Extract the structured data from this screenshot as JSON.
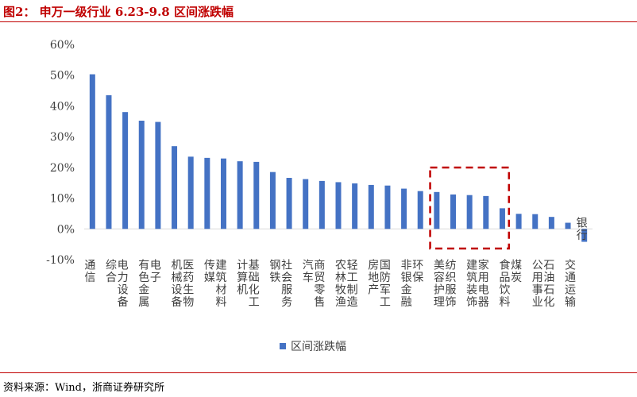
{
  "header": {
    "title": "图2： 申万一级行业 6.23-9.8 区间涨跌幅"
  },
  "footer": {
    "source": "资料来源：Wind，浙商证券研究所"
  },
  "colors": {
    "bar": "#4472c4",
    "title": "#c00000",
    "highlight": "#c00000",
    "axis": "#d9d9d9",
    "text": "#404040"
  },
  "chart_data": {
    "type": "bar",
    "title": "",
    "xlabel": "",
    "ylabel": "",
    "ylim": [
      -10,
      60
    ],
    "yticks": [
      -10,
      0,
      10,
      20,
      30,
      40,
      50,
      60
    ],
    "ytick_labels": [
      "-10%",
      "0%",
      "10%",
      "20%",
      "30%",
      "40%",
      "50%",
      "60%"
    ],
    "grid": false,
    "legend": {
      "position": "bottom",
      "entries": [
        "区间涨跌幅"
      ]
    },
    "categories": [
      "通信",
      "综合",
      "电力设备",
      "有色金属",
      "电子",
      "机械设备",
      "医药生物",
      "传媒",
      "建筑材料",
      "计算机",
      "基础化工",
      "钢铁",
      "社会服务",
      "汽车",
      "商贸零售",
      "农林牧渔",
      "轻工制造",
      "房地产",
      "国防军工",
      "非银金融",
      "环保",
      "美容护理",
      "纺织服饰",
      "建筑装饰",
      "家用电器",
      "食品饮料",
      "煤炭",
      "公用事业",
      "石油石化",
      "交通运输",
      "银行"
    ],
    "series": [
      {
        "name": "区间涨跌幅",
        "values": [
          50.3,
          43.5,
          38.0,
          35.2,
          34.8,
          26.9,
          23.5,
          23.1,
          22.9,
          22.0,
          21.8,
          18.5,
          16.6,
          16.2,
          15.6,
          15.2,
          14.8,
          14.3,
          14.1,
          13.1,
          12.3,
          12.0,
          11.2,
          11.0,
          10.7,
          6.7,
          4.9,
          4.8,
          3.9,
          2.0,
          -4.2
        ]
      }
    ],
    "annotations": [
      {
        "type": "dashed-box",
        "from": "美容护理",
        "to": "食品饮料"
      }
    ]
  }
}
